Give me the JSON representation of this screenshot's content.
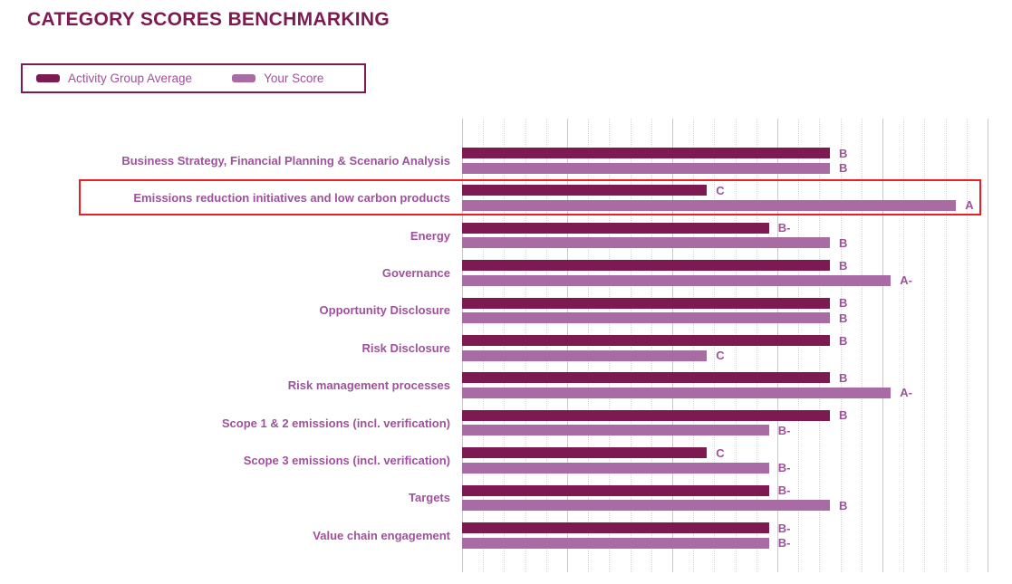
{
  "title": "CATEGORY SCORES BENCHMARKING",
  "legend": {
    "avg_label": "Activity Group Average",
    "your_label": "Your Score"
  },
  "colors": {
    "avg_bar": "#7d1a51",
    "your_bar": "#a96ba3",
    "title_text": "#7d1a51",
    "legend_border": "#7d1a51",
    "purple_text": "#a0519c",
    "highlight_border": "#ee1c23"
  },
  "chart_data": {
    "type": "bar",
    "orientation": "horizontal",
    "title": "CATEGORY SCORES BENCHMARKING",
    "legend_entries": [
      "Activity Group Average",
      "Your Score"
    ],
    "legend_position": "top-left boxed",
    "axis": {
      "xlim": [
        0,
        5
      ],
      "major_gridline_step": 1,
      "minor_gridline_step": 0.2,
      "tick_labels_visible": false,
      "grid": "vertical gridlines: solid majors, dotted minors"
    },
    "grade_scale": {
      "A": 4.7,
      "A-": 4.08,
      "B": 3.5,
      "B-": 2.92,
      "C": 2.33
    },
    "categories": [
      "Business Strategy, Financial Planning & Scenario Analysis",
      "Emissions reduction initiatives and low carbon products",
      "Energy",
      "Governance",
      "Opportunity Disclosure",
      "Risk Disclosure",
      "Risk management processes",
      "Scope 1 & 2 emissions (incl. verification)",
      "Scope 3 emissions (incl. verification)",
      "Targets",
      "Value chain engagement"
    ],
    "series": [
      {
        "name": "Activity Group Average",
        "grades": [
          "B",
          "C",
          "B-",
          "B",
          "B",
          "B",
          "B",
          "B",
          "C",
          "B-",
          "B-"
        ],
        "scores": [
          3.5,
          2.33,
          2.92,
          3.5,
          3.5,
          3.5,
          3.5,
          3.5,
          2.33,
          2.92,
          2.92
        ]
      },
      {
        "name": "Your Score",
        "grades": [
          "B",
          "A",
          "B",
          "A-",
          "B",
          "C",
          "A-",
          "B-",
          "B-",
          "B",
          "B-"
        ],
        "scores": [
          3.5,
          4.7,
          3.5,
          4.08,
          3.5,
          2.33,
          4.08,
          2.92,
          2.92,
          3.5,
          2.92
        ]
      }
    ],
    "highlighted_category": "Emissions reduction initiatives and low carbon products"
  }
}
